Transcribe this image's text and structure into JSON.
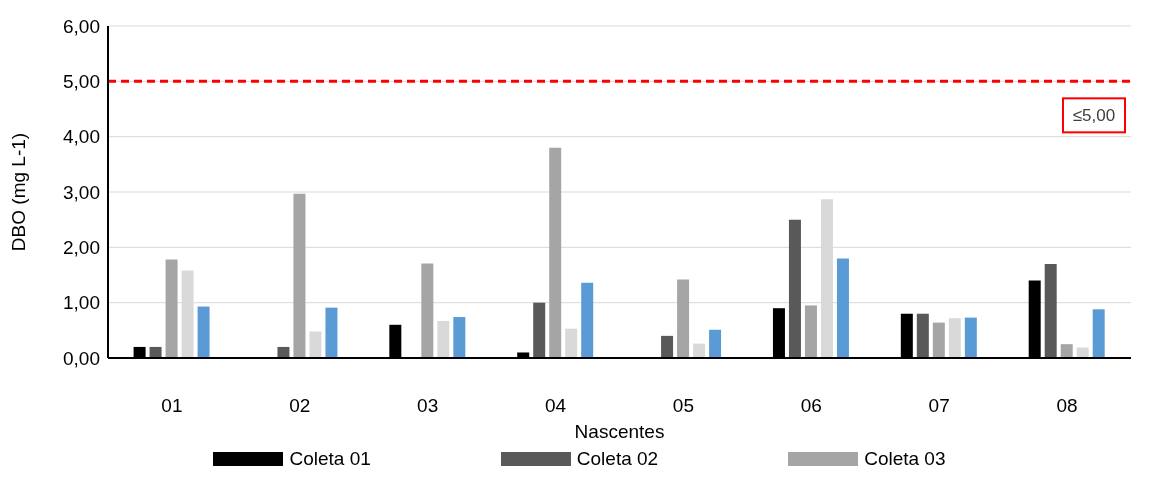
{
  "chart_data": {
    "type": "bar",
    "xlabel": "Nascentes",
    "ylabel": "DBO (mg L-1)",
    "categories": [
      "01",
      "02",
      "03",
      "04",
      "05",
      "06",
      "07",
      "08"
    ],
    "series": [
      {
        "name": "Coleta 01",
        "color": "#000000",
        "values": [
          0.2,
          0,
          0.6,
          0.1,
          0,
          0.9,
          0.8,
          1.4
        ]
      },
      {
        "name": "Coleta 02",
        "color": "#595959",
        "values": [
          0.2,
          0.2,
          0,
          1.0,
          0.4,
          2.5,
          0.8,
          1.7
        ]
      },
      {
        "name": "Coleta 03",
        "color": "#a5a5a5",
        "values": [
          1.78,
          2.97,
          1.71,
          3.8,
          1.42,
          0.95,
          0.64,
          0.25
        ]
      },
      {
        "color": "#d9d9d9",
        "values": [
          1.58,
          0.48,
          0.67,
          0.53,
          0.26,
          2.87,
          0.72,
          0.19
        ]
      },
      {
        "color": "#5b9bd5",
        "values": [
          0.93,
          0.91,
          0.74,
          1.36,
          0.51,
          1.8,
          0.73,
          0.88
        ]
      }
    ],
    "ylim": [
      0,
      6
    ],
    "yticks": [
      {
        "value": 0,
        "label": "0,00"
      },
      {
        "value": 1,
        "label": "1,00"
      },
      {
        "value": 2,
        "label": "2,00"
      },
      {
        "value": 3,
        "label": "3,00"
      },
      {
        "value": 4,
        "label": "4,00"
      },
      {
        "value": 5,
        "label": "5,00"
      },
      {
        "value": 6,
        "label": "6,00"
      }
    ],
    "grid": "y",
    "legend": "bottom",
    "ref_lines": [
      {
        "axis": "y",
        "value": 5,
        "label": "≤5,00",
        "color": "#ff0000",
        "line_style": "dashed"
      }
    ]
  }
}
